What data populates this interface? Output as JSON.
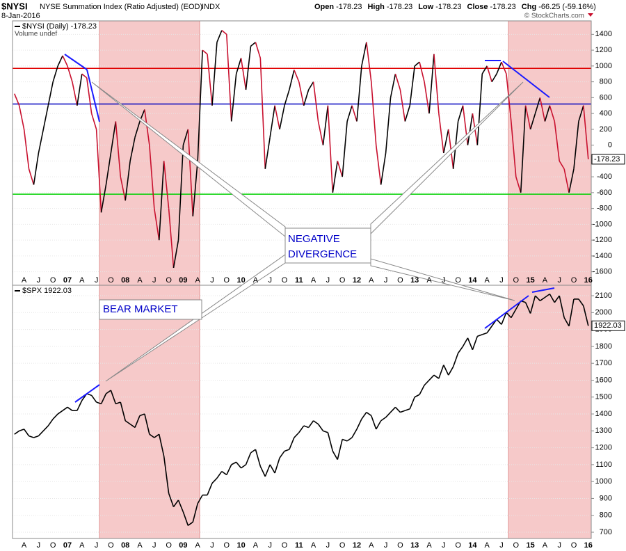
{
  "header": {
    "symbol": "$NYSI",
    "name": "NYSE Summation Index (Ratio Adjusted) (EOD)",
    "exchange": "INDX",
    "date": "8-Jan-2016",
    "quote": [
      {
        "label": "Open",
        "value": "-178.23"
      },
      {
        "label": "High",
        "value": "-178.23"
      },
      {
        "label": "Low",
        "value": "-178.23"
      },
      {
        "label": "Close",
        "value": "-178.23"
      },
      {
        "label": "Chg",
        "value": "-66.25 (-59.16%)"
      }
    ],
    "credit": "© StockCharts.com"
  },
  "annotations": {
    "divergence": [
      "NEGATIVE",
      "DIVERGENCE"
    ],
    "bear": "BEAR MARKET"
  },
  "chart_data": [
    {
      "type": "line",
      "volume_label": "Volume undef",
      "categories": [
        null,
        null,
        "A",
        null,
        null,
        "J",
        null,
        null,
        "O",
        null,
        null,
        "07",
        null,
        null,
        "A",
        null,
        null,
        "J",
        null,
        null,
        "O",
        null,
        null,
        "08",
        null,
        null,
        "A",
        null,
        null,
        "J",
        null,
        null,
        "O",
        null,
        null,
        "09",
        null,
        null,
        "A",
        null,
        null,
        "J",
        null,
        null,
        "O",
        null,
        null,
        "10",
        null,
        null,
        "A",
        null,
        null,
        "J",
        null,
        null,
        "O",
        null,
        null,
        "11",
        null,
        null,
        "A",
        null,
        null,
        "J",
        null,
        null,
        "O",
        null,
        null,
        "12",
        null,
        null,
        "A",
        null,
        null,
        "J",
        null,
        null,
        "O",
        null,
        null,
        "13",
        null,
        null,
        "A",
        null,
        null,
        "J",
        null,
        null,
        "O",
        null,
        null,
        "14",
        null,
        null,
        "A",
        null,
        null,
        "J",
        null,
        null,
        "O",
        null,
        null,
        "15",
        null,
        null,
        "A",
        null,
        null,
        "J",
        null,
        null,
        "O",
        null,
        null,
        "16"
      ],
      "series": [
        {
          "name": "$NYSI (Daily) -178.23",
          "color": "#000000",
          "down_color": "#c8102e",
          "values": [
            650,
            500,
            200,
            -300,
            -500,
            -100,
            200,
            500,
            800,
            1000,
            1130,
            1000,
            800,
            500,
            900,
            850,
            400,
            200,
            -850,
            -500,
            -100,
            300,
            -400,
            -700,
            -200,
            100,
            300,
            450,
            0,
            -800,
            -1200,
            -200,
            -800,
            -1550,
            -1200,
            0,
            200,
            -900,
            -200,
            1200,
            1150,
            500,
            1300,
            1450,
            1400,
            300,
            900,
            1100,
            700,
            1250,
            1300,
            1100,
            -300,
            100,
            500,
            200,
            500,
            700,
            950,
            800,
            500,
            700,
            800,
            300,
            0,
            500,
            -600,
            -200,
            -400,
            300,
            500,
            300,
            1000,
            1300,
            800,
            0,
            -500,
            -100,
            600,
            900,
            700,
            300,
            500,
            1000,
            1050,
            800,
            400,
            1150,
            400,
            -100,
            200,
            -300,
            300,
            500,
            0,
            400,
            0,
            900,
            1000,
            800,
            900,
            1050,
            900,
            300,
            -400,
            -600,
            500,
            200,
            400,
            600,
            300,
            500,
            300,
            -200,
            -300,
            -600,
            -300,
            300,
            500,
            -178.23
          ]
        }
      ],
      "hlines": [
        {
          "value": 970,
          "color": "#e00000"
        },
        {
          "value": 520,
          "color": "#0000c0"
        },
        {
          "value": -620,
          "color": "#00d000"
        }
      ],
      "ylim": [
        -1770,
        1570
      ],
      "yticks": [
        -1600,
        -1400,
        -1200,
        -1000,
        -800,
        -600,
        -400,
        -200,
        0,
        200,
        400,
        600,
        800,
        1000,
        1200,
        1400
      ],
      "grid": true
    },
    {
      "type": "line",
      "categories": [
        null,
        null,
        "A",
        null,
        null,
        "J",
        null,
        null,
        "O",
        null,
        null,
        "07",
        null,
        null,
        "A",
        null,
        null,
        "J",
        null,
        null,
        "O",
        null,
        null,
        "08",
        null,
        null,
        "A",
        null,
        null,
        "J",
        null,
        null,
        "O",
        null,
        null,
        "09",
        null,
        null,
        "A",
        null,
        null,
        "J",
        null,
        null,
        "O",
        null,
        null,
        "10",
        null,
        null,
        "A",
        null,
        null,
        "J",
        null,
        null,
        "O",
        null,
        null,
        "11",
        null,
        null,
        "A",
        null,
        null,
        "J",
        null,
        null,
        "O",
        null,
        null,
        "12",
        null,
        null,
        "A",
        null,
        null,
        "J",
        null,
        null,
        "O",
        null,
        null,
        "13",
        null,
        null,
        "A",
        null,
        null,
        "J",
        null,
        null,
        "O",
        null,
        null,
        "14",
        null,
        null,
        "A",
        null,
        null,
        "J",
        null,
        null,
        "O",
        null,
        null,
        "15",
        null,
        null,
        "A",
        null,
        null,
        "J",
        null,
        null,
        "O",
        null,
        null,
        "16"
      ],
      "series": [
        {
          "name": "$SPX 1922.03",
          "color": "#000000",
          "values": [
            1280,
            1300,
            1310,
            1270,
            1260,
            1270,
            1300,
            1330,
            1370,
            1400,
            1420,
            1440,
            1420,
            1420,
            1480,
            1520,
            1510,
            1470,
            1460,
            1520,
            1540,
            1460,
            1470,
            1360,
            1340,
            1320,
            1390,
            1400,
            1280,
            1260,
            1280,
            1150,
            930,
            850,
            890,
            820,
            740,
            760,
            870,
            920,
            920,
            990,
            1020,
            1060,
            1040,
            1100,
            1115,
            1080,
            1100,
            1170,
            1190,
            1090,
            1030,
            1100,
            1050,
            1140,
            1180,
            1190,
            1260,
            1290,
            1330,
            1320,
            1360,
            1340,
            1300,
            1290,
            1180,
            1130,
            1250,
            1240,
            1260,
            1310,
            1370,
            1410,
            1390,
            1310,
            1360,
            1380,
            1410,
            1440,
            1410,
            1420,
            1430,
            1500,
            1515,
            1570,
            1600,
            1630,
            1610,
            1690,
            1630,
            1680,
            1760,
            1800,
            1850,
            1780,
            1860,
            1870,
            1880,
            1920,
            1960,
            1930,
            2000,
            1970,
            2020,
            2070,
            2060,
            1995,
            2100,
            2070,
            2090,
            2110,
            2060,
            2100,
            1970,
            1920,
            2080,
            2080,
            2040,
            1922.03
          ]
        }
      ],
      "ylim": [
        663,
        2162
      ],
      "yticks": [
        700,
        800,
        900,
        1000,
        1100,
        1200,
        1300,
        1400,
        1500,
        1600,
        1700,
        1800,
        1900,
        2000,
        2100
      ],
      "grid": true
    }
  ]
}
